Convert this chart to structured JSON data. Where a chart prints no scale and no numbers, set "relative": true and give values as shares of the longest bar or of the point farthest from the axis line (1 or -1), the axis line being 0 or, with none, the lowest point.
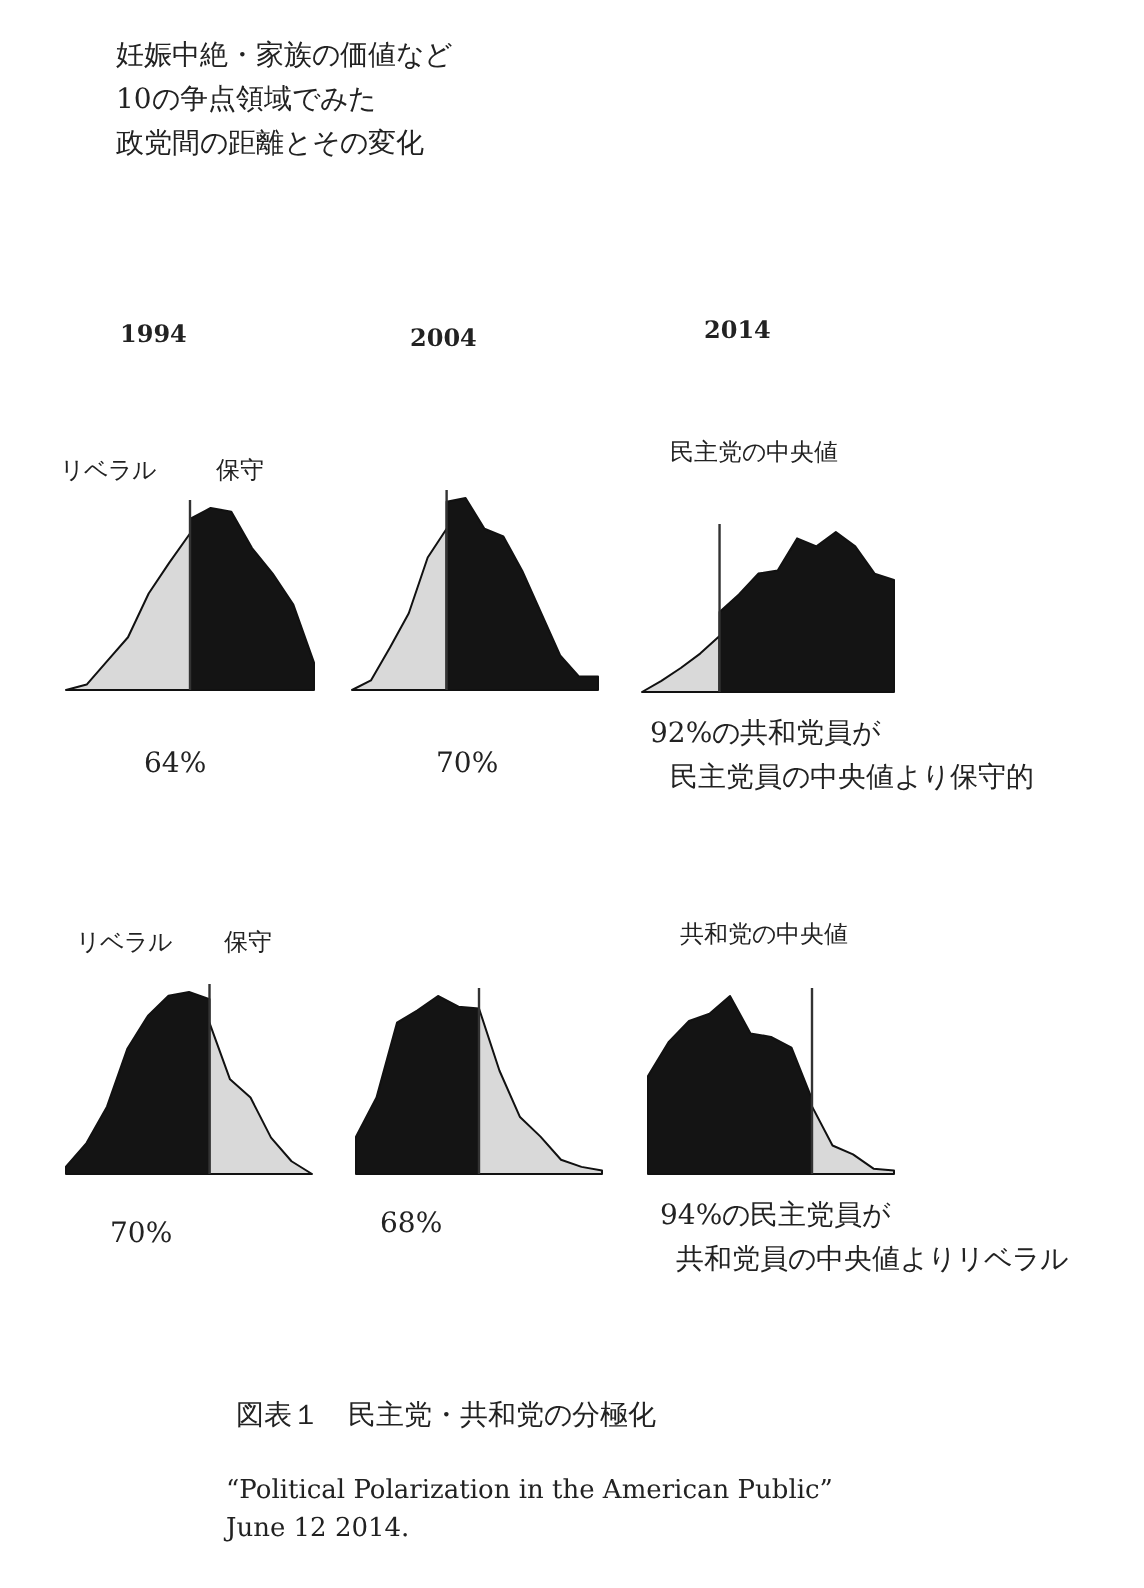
{
  "chart_data": [
    {
      "type": "other",
      "title": "妊娠中絶・家族の価値など",
      "annotations": [
        "10の争点領域でみた",
        "政党間の距離とその変化"
      ]
    },
    {
      "type": "area",
      "title": "1994",
      "relative": true,
      "tick_labels": false,
      "categories": [
        null,
        null,
        null,
        null,
        null,
        null,
        null,
        null,
        null,
        null,
        null,
        null,
        null
      ],
      "series": [
        {
          "color": "#d9d9d9",
          "values": [
            0,
            0.03,
            0.16,
            0.29,
            0.53,
            0.7,
            0.86,
            null,
            null,
            null,
            null,
            null,
            null
          ]
        },
        {
          "color": "#141414",
          "values": [
            null,
            null,
            null,
            null,
            null,
            null,
            0.94,
            1.0,
            0.98,
            0.78,
            0.64,
            0.47,
            0.15
          ]
        }
      ],
      "annotations": [
        "リベラル",
        "保守",
        "64%"
      ]
    },
    {
      "type": "area",
      "title": "2004",
      "relative": true,
      "tick_labels": false,
      "categories": [
        null,
        null,
        null,
        null,
        null,
        null,
        null,
        null,
        null,
        null,
        null,
        null,
        null,
        null
      ],
      "series": [
        {
          "color": "#d9d9d9",
          "values": [
            0,
            0.05,
            0.22,
            0.4,
            0.69,
            0.84,
            null,
            null,
            null,
            null,
            null,
            null,
            null,
            null
          ]
        },
        {
          "color": "#141414",
          "values": [
            null,
            null,
            null,
            null,
            null,
            0.98,
            1.0,
            0.84,
            0.8,
            0.62,
            0.4,
            0.18,
            0.07,
            0.07
          ]
        }
      ],
      "annotations": [
        "70%"
      ]
    },
    {
      "type": "area",
      "title": "2014",
      "relative": true,
      "tick_labels": false,
      "categories": [
        null,
        null,
        null,
        null,
        null,
        null,
        null,
        null,
        null,
        null,
        null,
        null,
        null,
        null
      ],
      "series": [
        {
          "color": "#d9d9d9",
          "values": [
            0,
            0.07,
            0.15,
            0.24,
            0.35,
            null,
            null,
            null,
            null,
            null,
            null,
            null,
            null,
            null
          ]
        },
        {
          "color": "#141414",
          "values": [
            null,
            null,
            null,
            null,
            0.5,
            0.61,
            0.74,
            0.76,
            0.96,
            0.91,
            1.0,
            0.91,
            0.74,
            0.7
          ]
        }
      ],
      "annotations": [
        "民主党の中央値",
        "92%の共和党員が",
        "民主党員の中央値より保守的"
      ]
    },
    {
      "type": "area",
      "relative": true,
      "tick_labels": false,
      "categories": [
        null,
        null,
        null,
        null,
        null,
        null,
        null,
        null,
        null,
        null,
        null,
        null,
        null
      ],
      "series": [
        {
          "color": "#141414",
          "values": [
            0.04,
            0.17,
            0.37,
            0.69,
            0.87,
            0.98,
            1.0,
            0.96,
            null,
            null,
            null,
            null,
            null
          ]
        },
        {
          "color": "#d9d9d9",
          "values": [
            null,
            null,
            null,
            null,
            null,
            null,
            null,
            0.83,
            0.52,
            0.42,
            0.2,
            0.07,
            0.0
          ]
        }
      ],
      "annotations": [
        "リベラル",
        "保守",
        "70%"
      ]
    },
    {
      "type": "area",
      "relative": true,
      "tick_labels": false,
      "categories": [
        null,
        null,
        null,
        null,
        null,
        null,
        null,
        null,
        null,
        null,
        null,
        null,
        null
      ],
      "series": [
        {
          "color": "#141414",
          "values": [
            0.21,
            0.43,
            0.85,
            0.92,
            1.0,
            0.94,
            0.93,
            null,
            null,
            null,
            null,
            null,
            null
          ]
        },
        {
          "color": "#d9d9d9",
          "values": [
            null,
            null,
            null,
            null,
            null,
            null,
            0.93,
            0.58,
            0.32,
            0.21,
            0.08,
            0.04,
            0.02
          ]
        }
      ],
      "annotations": [
        "68%"
      ]
    },
    {
      "type": "area",
      "relative": true,
      "tick_labels": false,
      "categories": [
        null,
        null,
        null,
        null,
        null,
        null,
        null,
        null,
        null,
        null,
        null,
        null,
        null
      ],
      "series": [
        {
          "color": "#141414",
          "values": [
            0.55,
            0.74,
            0.86,
            0.9,
            1.0,
            0.79,
            0.77,
            0.71,
            0.42,
            null,
            null,
            null,
            null
          ]
        },
        {
          "color": "#d9d9d9",
          "values": [
            null,
            null,
            null,
            null,
            null,
            null,
            null,
            null,
            0.38,
            0.16,
            0.11,
            0.03,
            0.02
          ]
        }
      ],
      "annotations": [
        "共和党の中央値",
        "94%の民主党員が",
        "共和党員の中央値よりリベラル"
      ]
    },
    {
      "type": "other",
      "title": "図表１　民主党・共和党の分極化",
      "annotations": [
        "“Political Polarization in the American Public”",
        "June 12 2014."
      ]
    }
  ]
}
